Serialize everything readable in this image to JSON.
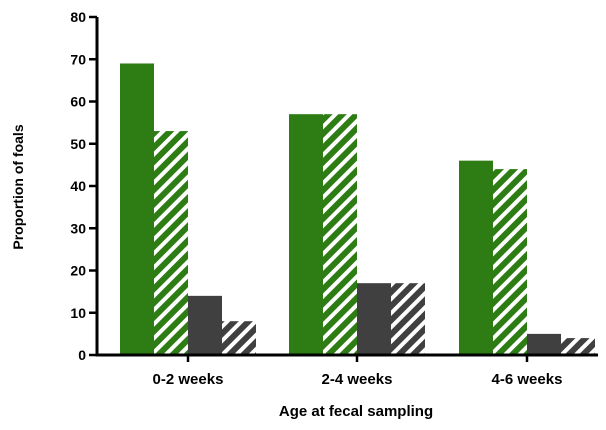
{
  "chart_data": {
    "type": "bar",
    "title": "",
    "xlabel": "Age at fecal sampling",
    "ylabel": "Proportion of foals",
    "categories": [
      "0-2 weeks",
      "2-4 weeks",
      "4-6 weeks"
    ],
    "ylim": [
      0,
      80
    ],
    "yticks": [
      0,
      10,
      20,
      30,
      40,
      50,
      60,
      70,
      80
    ],
    "grid": false,
    "legend": "none",
    "series": [
      {
        "values": [
          69,
          57,
          46
        ],
        "color": "#2e7d14",
        "pattern": "solid"
      },
      {
        "values": [
          53,
          57,
          44
        ],
        "color": "#2e7d14",
        "pattern": "hatched"
      },
      {
        "values": [
          14,
          17,
          5
        ],
        "color": "#404040",
        "pattern": "solid"
      },
      {
        "values": [
          8,
          17,
          4
        ],
        "color": "#404040",
        "pattern": "hatched"
      }
    ]
  }
}
